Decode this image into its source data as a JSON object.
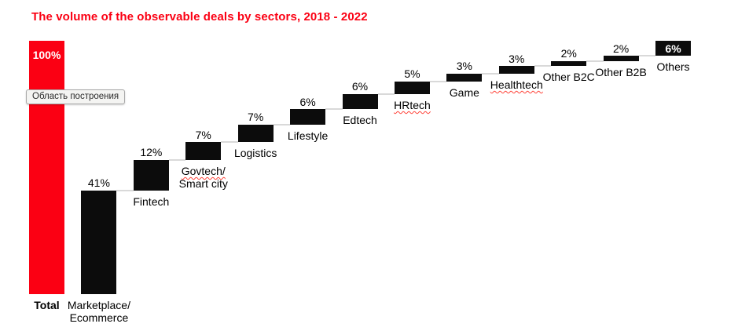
{
  "title": {
    "text": "The volume of the observable deals by sectors, 2018 - 2022"
  },
  "tooltip": {
    "text": "Область построения"
  },
  "colors": {
    "accent_red": "#fb0013",
    "bar_black": "#0c0c0c",
    "connector_gray": "#d9d9d9",
    "inside_label_white": "#ffffff",
    "label_black": "#000000",
    "spellcheck_red": "#ff4238",
    "tooltip_bg": "#f4f4f2",
    "tooltip_border": "#a8a8a8",
    "tooltip_text": "#2b2b2b"
  },
  "chart_data": {
    "type": "bar",
    "subtype": "waterfall",
    "title": "The volume of the observable deals by sectors, 2018 - 2022",
    "unit": "%",
    "ylim": [
      0,
      100
    ],
    "grid": false,
    "legend": false,
    "categories": [
      "Total",
      "Marketplace/Ecommerce",
      "Fintech",
      "Govtech/Smart city",
      "Logistics",
      "Lifestyle",
      "Edtech",
      "HRtech",
      "Game",
      "Healthtech",
      "Other B2C",
      "Other B2B",
      "Others"
    ],
    "values": [
      100,
      41,
      12,
      7,
      7,
      6,
      6,
      5,
      3,
      3,
      2,
      2,
      6
    ],
    "items": [
      {
        "category_lines": [
          "Total"
        ],
        "value": 100,
        "value_label": "100%",
        "is_total": true,
        "value_inside": true,
        "category_bold": true,
        "misspelled_lines": []
      },
      {
        "category_lines": [
          "Marketplace/",
          "Ecommerce"
        ],
        "value": 41,
        "value_label": "41%",
        "is_total": false,
        "value_inside": false,
        "category_bold": false,
        "misspelled_lines": []
      },
      {
        "category_lines": [
          "Fintech"
        ],
        "value": 12,
        "value_label": "12%",
        "is_total": false,
        "value_inside": false,
        "category_bold": false,
        "misspelled_lines": []
      },
      {
        "category_lines": [
          "Govtech/",
          "Smart city"
        ],
        "value": 7,
        "value_label": "7%",
        "is_total": false,
        "value_inside": false,
        "category_bold": false,
        "misspelled_lines": [
          0
        ]
      },
      {
        "category_lines": [
          "Logistics"
        ],
        "value": 7,
        "value_label": "7%",
        "is_total": false,
        "value_inside": false,
        "category_bold": false,
        "misspelled_lines": []
      },
      {
        "category_lines": [
          "Lifestyle"
        ],
        "value": 6,
        "value_label": "6%",
        "is_total": false,
        "value_inside": false,
        "category_bold": false,
        "misspelled_lines": []
      },
      {
        "category_lines": [
          "Edtech"
        ],
        "value": 6,
        "value_label": "6%",
        "is_total": false,
        "value_inside": false,
        "category_bold": false,
        "misspelled_lines": []
      },
      {
        "category_lines": [
          "HRtech"
        ],
        "value": 5,
        "value_label": "5%",
        "is_total": false,
        "value_inside": false,
        "category_bold": false,
        "misspelled_lines": [
          0
        ]
      },
      {
        "category_lines": [
          "Game"
        ],
        "value": 3,
        "value_label": "3%",
        "is_total": false,
        "value_inside": false,
        "category_bold": false,
        "misspelled_lines": []
      },
      {
        "category_lines": [
          "Healthtech"
        ],
        "value": 3,
        "value_label": "3%",
        "is_total": false,
        "value_inside": false,
        "category_bold": false,
        "misspelled_lines": [
          0
        ]
      },
      {
        "category_lines": [
          "Other B2C"
        ],
        "value": 2,
        "value_label": "2%",
        "is_total": false,
        "value_inside": false,
        "category_bold": false,
        "misspelled_lines": []
      },
      {
        "category_lines": [
          "Other B2B"
        ],
        "value": 2,
        "value_label": "2%",
        "is_total": false,
        "value_inside": false,
        "category_bold": false,
        "misspelled_lines": []
      },
      {
        "category_lines": [
          "Others"
        ],
        "value": 6,
        "value_label": "6%",
        "is_total": false,
        "value_inside": true,
        "category_bold": false,
        "misspelled_lines": []
      }
    ]
  }
}
